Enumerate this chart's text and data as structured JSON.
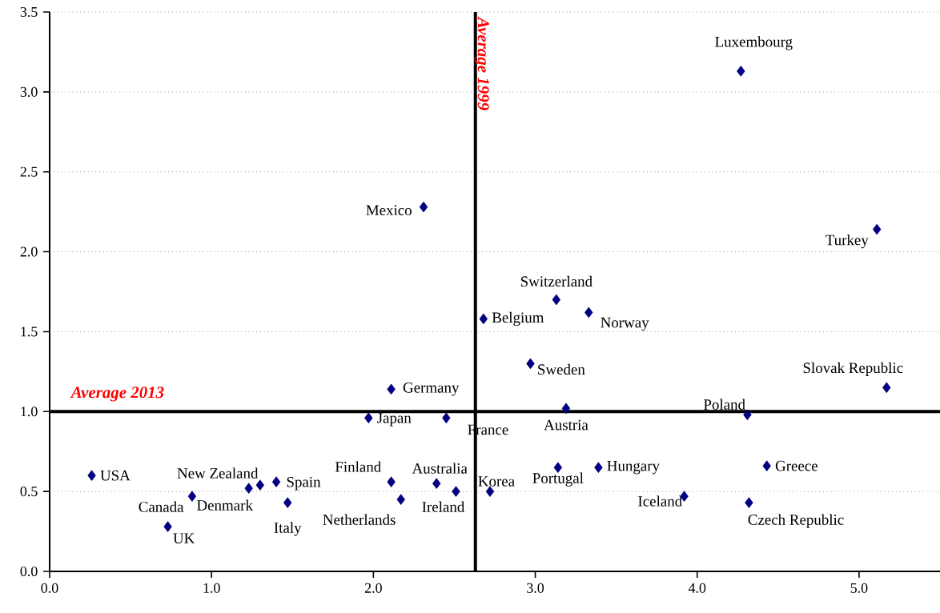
{
  "chart_data": {
    "type": "scatter",
    "xlim": [
      0,
      5.5
    ],
    "ylim": [
      0,
      3.5
    ],
    "xticks": [
      {
        "value": 0,
        "label": "0.0"
      },
      {
        "value": 1,
        "label": "1.0"
      },
      {
        "value": 2,
        "label": "2.0"
      },
      {
        "value": 3,
        "label": "3.0"
      },
      {
        "value": 4,
        "label": "4.0"
      },
      {
        "value": 5,
        "label": "5.0"
      }
    ],
    "yticks": [
      {
        "value": 0,
        "label": "0.0"
      },
      0.5,
      {
        "value": 1,
        "label": "1.0"
      },
      1.5,
      {
        "value": 2,
        "label": "2.0"
      },
      2.5,
      {
        "value": 3,
        "label": "3.0"
      },
      3.5
    ],
    "grid": "y",
    "marker": "diamond",
    "series": [
      {
        "color": "#000080",
        "x": [
          0.26,
          0.88,
          0.73,
          1.23,
          1.3,
          1.4,
          1.47,
          2.11,
          2.17,
          2.39,
          2.51,
          2.72,
          1.97,
          2.45,
          2.11,
          2.31,
          2.68,
          3.13,
          3.33,
          2.97,
          3.19,
          3.14,
          3.39,
          3.92,
          4.31,
          4.32,
          4.43,
          5.17,
          5.11,
          4.27
        ],
        "values": [
          0.6,
          0.47,
          0.28,
          0.52,
          0.54,
          0.56,
          0.43,
          0.56,
          0.45,
          0.55,
          0.5,
          0.5,
          0.96,
          0.96,
          1.14,
          2.28,
          1.58,
          1.7,
          1.62,
          1.3,
          1.02,
          0.65,
          0.65,
          0.47,
          0.98,
          0.43,
          0.66,
          1.15,
          2.14,
          3.13
        ]
      }
    ],
    "ref_lines": [
      {
        "axis": "x",
        "value": 2.63,
        "label": "Average 1999",
        "color": "#000000"
      },
      {
        "axis": "y",
        "value": 1.0,
        "label": "Average 2013",
        "color": "#000000"
      }
    ],
    "annotations": [
      {
        "text": "USA",
        "x": 0.26,
        "y": 0.6
      },
      {
        "text": "Canada",
        "x": 0.88,
        "y": 0.47
      },
      {
        "text": "UK",
        "x": 0.73,
        "y": 0.28
      },
      {
        "text": "Denmark",
        "x": 1.23,
        "y": 0.52
      },
      {
        "text": "New Zealand",
        "x": 1.3,
        "y": 0.54
      },
      {
        "text": "Spain",
        "x": 1.4,
        "y": 0.56
      },
      {
        "text": "Italy",
        "x": 1.47,
        "y": 0.43
      },
      {
        "text": "Finland",
        "x": 2.11,
        "y": 0.56
      },
      {
        "text": "Netherlands",
        "x": 2.17,
        "y": 0.45
      },
      {
        "text": "Australia",
        "x": 2.39,
        "y": 0.55
      },
      {
        "text": "Ireland",
        "x": 2.51,
        "y": 0.5
      },
      {
        "text": "Korea",
        "x": 2.72,
        "y": 0.5
      },
      {
        "text": "Japan",
        "x": 1.97,
        "y": 0.96
      },
      {
        "text": "France",
        "x": 2.45,
        "y": 0.96
      },
      {
        "text": "Germany",
        "x": 2.11,
        "y": 1.14
      },
      {
        "text": "Mexico",
        "x": 2.31,
        "y": 2.28
      },
      {
        "text": "Belgium",
        "x": 2.68,
        "y": 1.58
      },
      {
        "text": "Switzerland",
        "x": 3.13,
        "y": 1.7
      },
      {
        "text": "Norway",
        "x": 3.33,
        "y": 1.62
      },
      {
        "text": "Sweden",
        "x": 2.97,
        "y": 1.3
      },
      {
        "text": "Austria",
        "x": 3.19,
        "y": 1.02
      },
      {
        "text": "Portugal",
        "x": 3.14,
        "y": 0.65
      },
      {
        "text": "Hungary",
        "x": 3.39,
        "y": 0.65
      },
      {
        "text": "Iceland",
        "x": 3.92,
        "y": 0.47
      },
      {
        "text": "Poland",
        "x": 4.31,
        "y": 0.98
      },
      {
        "text": "Czech Republic",
        "x": 4.32,
        "y": 0.43
      },
      {
        "text": "Greece",
        "x": 4.43,
        "y": 0.66
      },
      {
        "text": "Slovak Republic",
        "x": 5.17,
        "y": 1.15
      },
      {
        "text": "Turkey",
        "x": 5.11,
        "y": 2.14
      },
      {
        "text": "Luxembourg",
        "x": 4.27,
        "y": 3.13
      }
    ]
  }
}
